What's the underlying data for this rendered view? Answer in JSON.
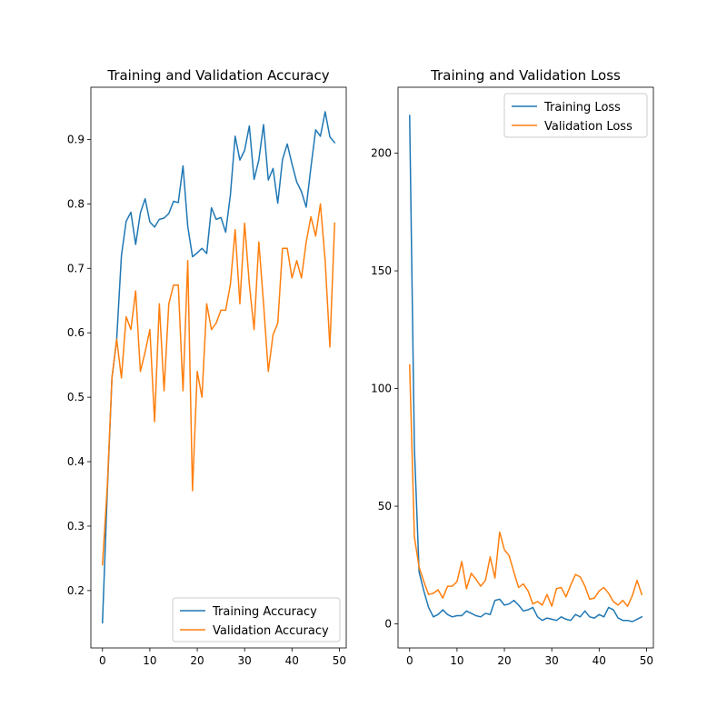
{
  "chart_data": [
    {
      "type": "line",
      "title": "Training and Validation Accuracy",
      "xlabel": "",
      "ylabel": "",
      "xlim": [
        -2.45,
        51.45
      ],
      "ylim": [
        0.111,
        0.981
      ],
      "xticks": [
        0,
        10,
        20,
        30,
        40,
        50
      ],
      "yticks": [
        0.2,
        0.3,
        0.4,
        0.5,
        0.6,
        0.7,
        0.8,
        0.9
      ],
      "ytick_decimals": 1,
      "legend_position": "lower right",
      "series": [
        {
          "name": "Training Accuracy",
          "color": "#1f77b4",
          "x": [
            0,
            1,
            2,
            3,
            4,
            5,
            6,
            7,
            8,
            9,
            10,
            11,
            12,
            13,
            14,
            15,
            16,
            17,
            18,
            19,
            20,
            21,
            22,
            23,
            24,
            25,
            26,
            27,
            28,
            29,
            30,
            31,
            32,
            33,
            34,
            35,
            36,
            37,
            38,
            39,
            40,
            41,
            42,
            43,
            44,
            45,
            46,
            47,
            48,
            49
          ],
          "values": [
            0.15,
            0.35,
            0.53,
            0.59,
            0.72,
            0.773,
            0.787,
            0.737,
            0.786,
            0.808,
            0.772,
            0.764,
            0.776,
            0.778,
            0.785,
            0.804,
            0.802,
            0.859,
            0.765,
            0.718,
            0.724,
            0.731,
            0.723,
            0.794,
            0.776,
            0.779,
            0.756,
            0.814,
            0.905,
            0.868,
            0.883,
            0.921,
            0.838,
            0.868,
            0.923,
            0.837,
            0.855,
            0.801,
            0.869,
            0.893,
            0.862,
            0.834,
            0.819,
            0.795,
            0.857,
            0.915,
            0.905,
            0.943,
            0.904,
            0.895
          ]
        },
        {
          "name": "Validation Accuracy",
          "color": "#ff7f0e",
          "x": [
            0,
            1,
            2,
            3,
            4,
            5,
            6,
            7,
            8,
            9,
            10,
            11,
            12,
            13,
            14,
            15,
            16,
            17,
            18,
            19,
            20,
            21,
            22,
            23,
            24,
            25,
            26,
            27,
            28,
            29,
            30,
            31,
            32,
            33,
            34,
            35,
            36,
            37,
            38,
            39,
            40,
            41,
            42,
            43,
            44,
            45,
            46,
            47,
            48,
            49
          ],
          "values": [
            0.24,
            0.36,
            0.53,
            0.59,
            0.53,
            0.625,
            0.605,
            0.665,
            0.54,
            0.57,
            0.605,
            0.462,
            0.645,
            0.51,
            0.645,
            0.674,
            0.674,
            0.51,
            0.712,
            0.355,
            0.54,
            0.5,
            0.645,
            0.605,
            0.615,
            0.635,
            0.635,
            0.675,
            0.76,
            0.645,
            0.77,
            0.675,
            0.605,
            0.741,
            0.645,
            0.54,
            0.597,
            0.615,
            0.731,
            0.731,
            0.685,
            0.712,
            0.685,
            0.741,
            0.78,
            0.75,
            0.8,
            0.712,
            0.578,
            0.77
          ]
        }
      ]
    },
    {
      "type": "line",
      "title": "Training and Validation Loss",
      "xlabel": "",
      "ylabel": "",
      "xlim": [
        -2.45,
        51.45
      ],
      "ylim": [
        -10.2,
        228
      ],
      "xticks": [
        0,
        10,
        20,
        30,
        40,
        50
      ],
      "yticks": [
        0,
        50,
        100,
        150,
        200
      ],
      "ytick_decimals": 0,
      "legend_position": "upper right",
      "series": [
        {
          "name": "Training Loss",
          "color": "#1f77b4",
          "x": [
            0,
            1,
            2,
            3,
            4,
            5,
            6,
            7,
            8,
            9,
            10,
            11,
            12,
            13,
            14,
            15,
            16,
            17,
            18,
            19,
            20,
            21,
            22,
            23,
            24,
            25,
            26,
            27,
            28,
            29,
            30,
            31,
            32,
            33,
            34,
            35,
            36,
            37,
            38,
            39,
            40,
            41,
            42,
            43,
            44,
            45,
            46,
            47,
            48,
            49
          ],
          "values": [
            216,
            75,
            22,
            14,
            7,
            3,
            4,
            6,
            4,
            3,
            3.5,
            3.5,
            5.5,
            4.5,
            3.5,
            3,
            4.5,
            4,
            10,
            10.5,
            8,
            8.5,
            10,
            8,
            5.5,
            6,
            7,
            3,
            1.5,
            2.5,
            2,
            1.5,
            3,
            2,
            1.5,
            4,
            3,
            5.5,
            3,
            2.5,
            4,
            3,
            7,
            6,
            2.5,
            1.5,
            1.5,
            1,
            2,
            3
          ]
        },
        {
          "name": "Validation Loss",
          "color": "#ff7f0e",
          "x": [
            0,
            1,
            2,
            3,
            4,
            5,
            6,
            7,
            8,
            9,
            10,
            11,
            12,
            13,
            14,
            15,
            16,
            17,
            18,
            19,
            20,
            21,
            22,
            23,
            24,
            25,
            26,
            27,
            28,
            29,
            30,
            31,
            32,
            33,
            34,
            35,
            36,
            37,
            38,
            39,
            40,
            41,
            42,
            43,
            44,
            45,
            46,
            47,
            48,
            49
          ],
          "values": [
            110,
            37,
            24,
            18,
            12.5,
            13,
            14.5,
            11,
            16,
            16,
            18,
            26.5,
            15,
            21.5,
            19,
            16,
            18.5,
            28.5,
            19.5,
            39,
            31.5,
            29,
            22,
            15.5,
            17,
            14,
            8.5,
            9.5,
            8,
            12.5,
            7.5,
            15,
            15.5,
            11.5,
            16.5,
            21,
            20,
            16,
            10.5,
            11,
            14,
            15.5,
            13,
            9.5,
            8,
            10,
            7.5,
            12,
            18.5,
            12.5
          ]
        }
      ]
    }
  ]
}
